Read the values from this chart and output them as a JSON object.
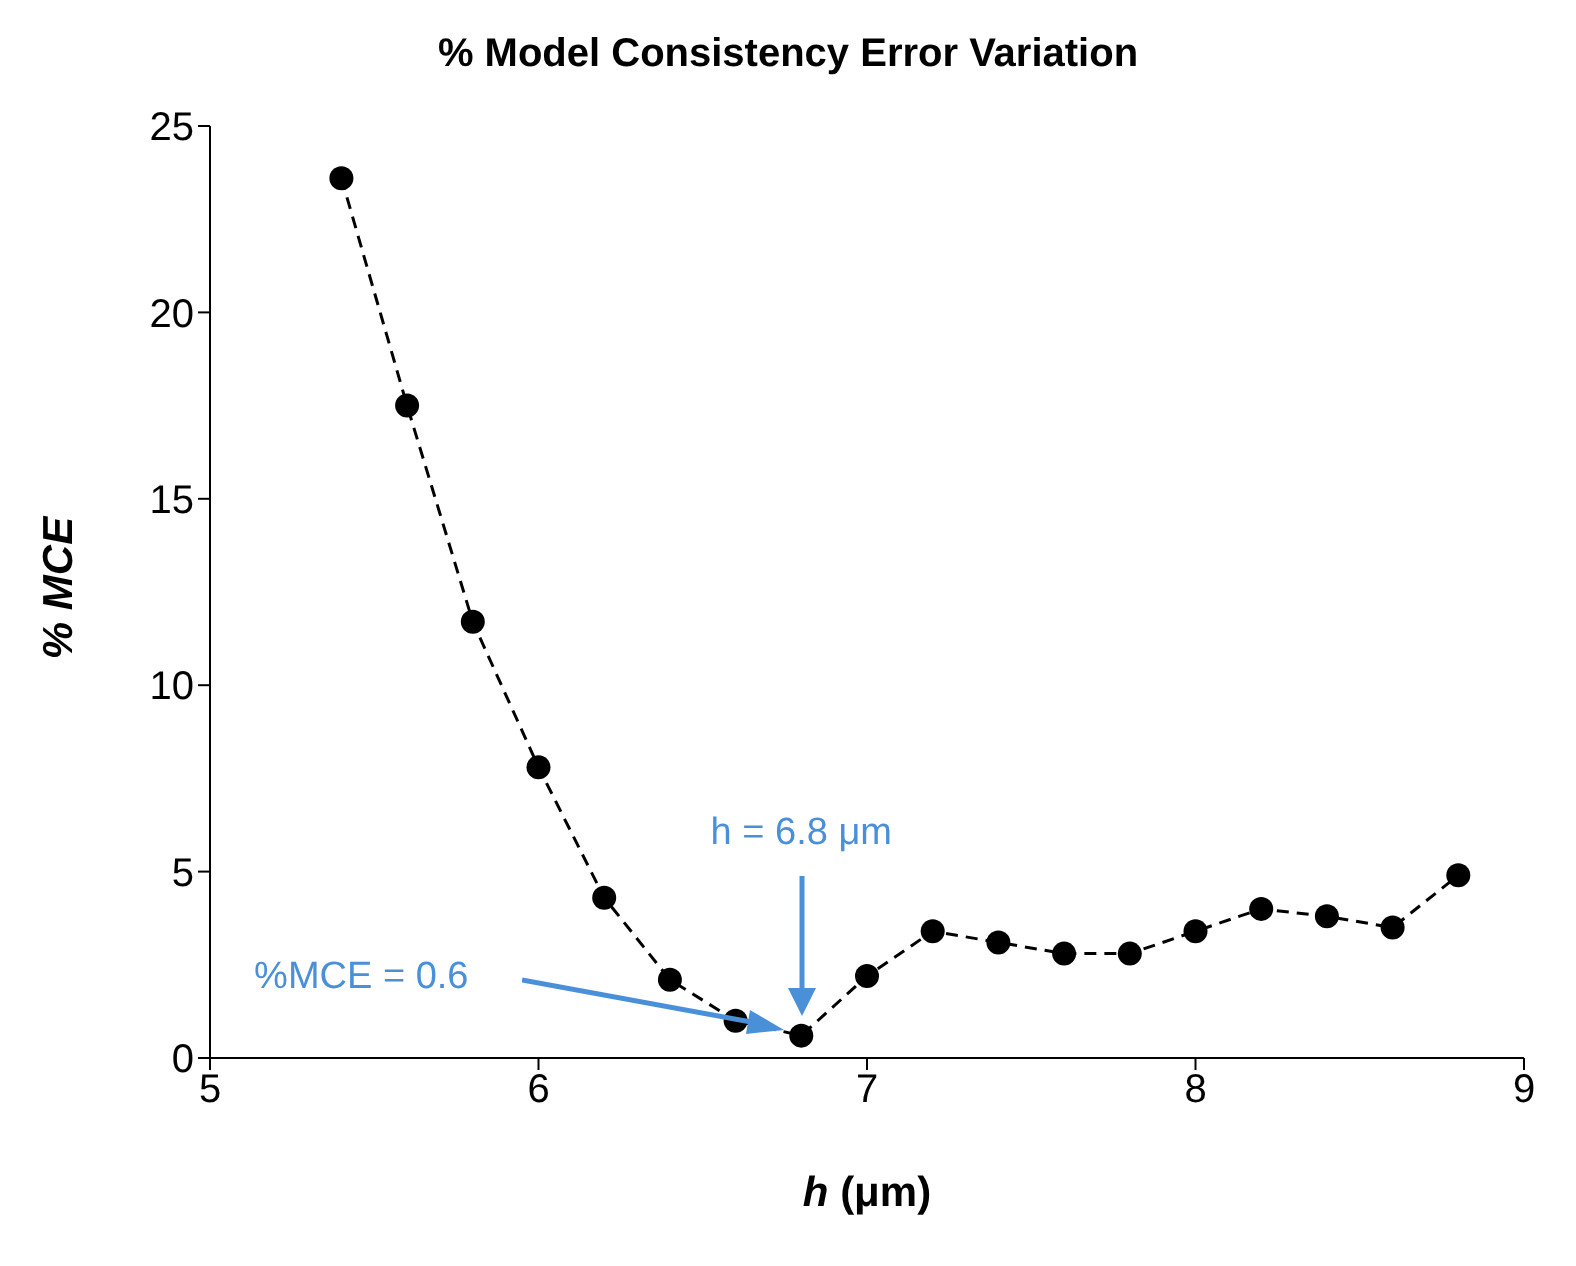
{
  "chart_data": {
    "type": "line",
    "title": "% Model Consistency Error Variation",
    "xlabel": "h (μm)",
    "ylabel": "% MCE",
    "x": [
      5.4,
      5.6,
      5.8,
      6.0,
      6.2,
      6.4,
      6.6,
      6.8,
      7.0,
      7.2,
      7.4,
      7.6,
      7.8,
      8.0,
      8.2,
      8.4,
      8.6,
      8.8
    ],
    "series": [
      {
        "color": "#000000",
        "values": [
          23.6,
          17.5,
          11.7,
          7.8,
          4.3,
          2.1,
          1.0,
          0.6,
          2.2,
          3.4,
          3.1,
          2.8,
          2.8,
          3.4,
          4.0,
          3.8,
          3.5,
          4.9
        ]
      }
    ],
    "xlim": [
      5,
      9
    ],
    "xticks": [
      5,
      6,
      7,
      8,
      9
    ],
    "ylim": [
      0,
      25
    ],
    "yticks": [
      0,
      5,
      10,
      15,
      20,
      25
    ],
    "grid": false,
    "legend": false,
    "marker": "circle",
    "line_style": "dashed",
    "annotations": [
      "h = 6.8 μm",
      "%MCE = 0.6"
    ]
  }
}
